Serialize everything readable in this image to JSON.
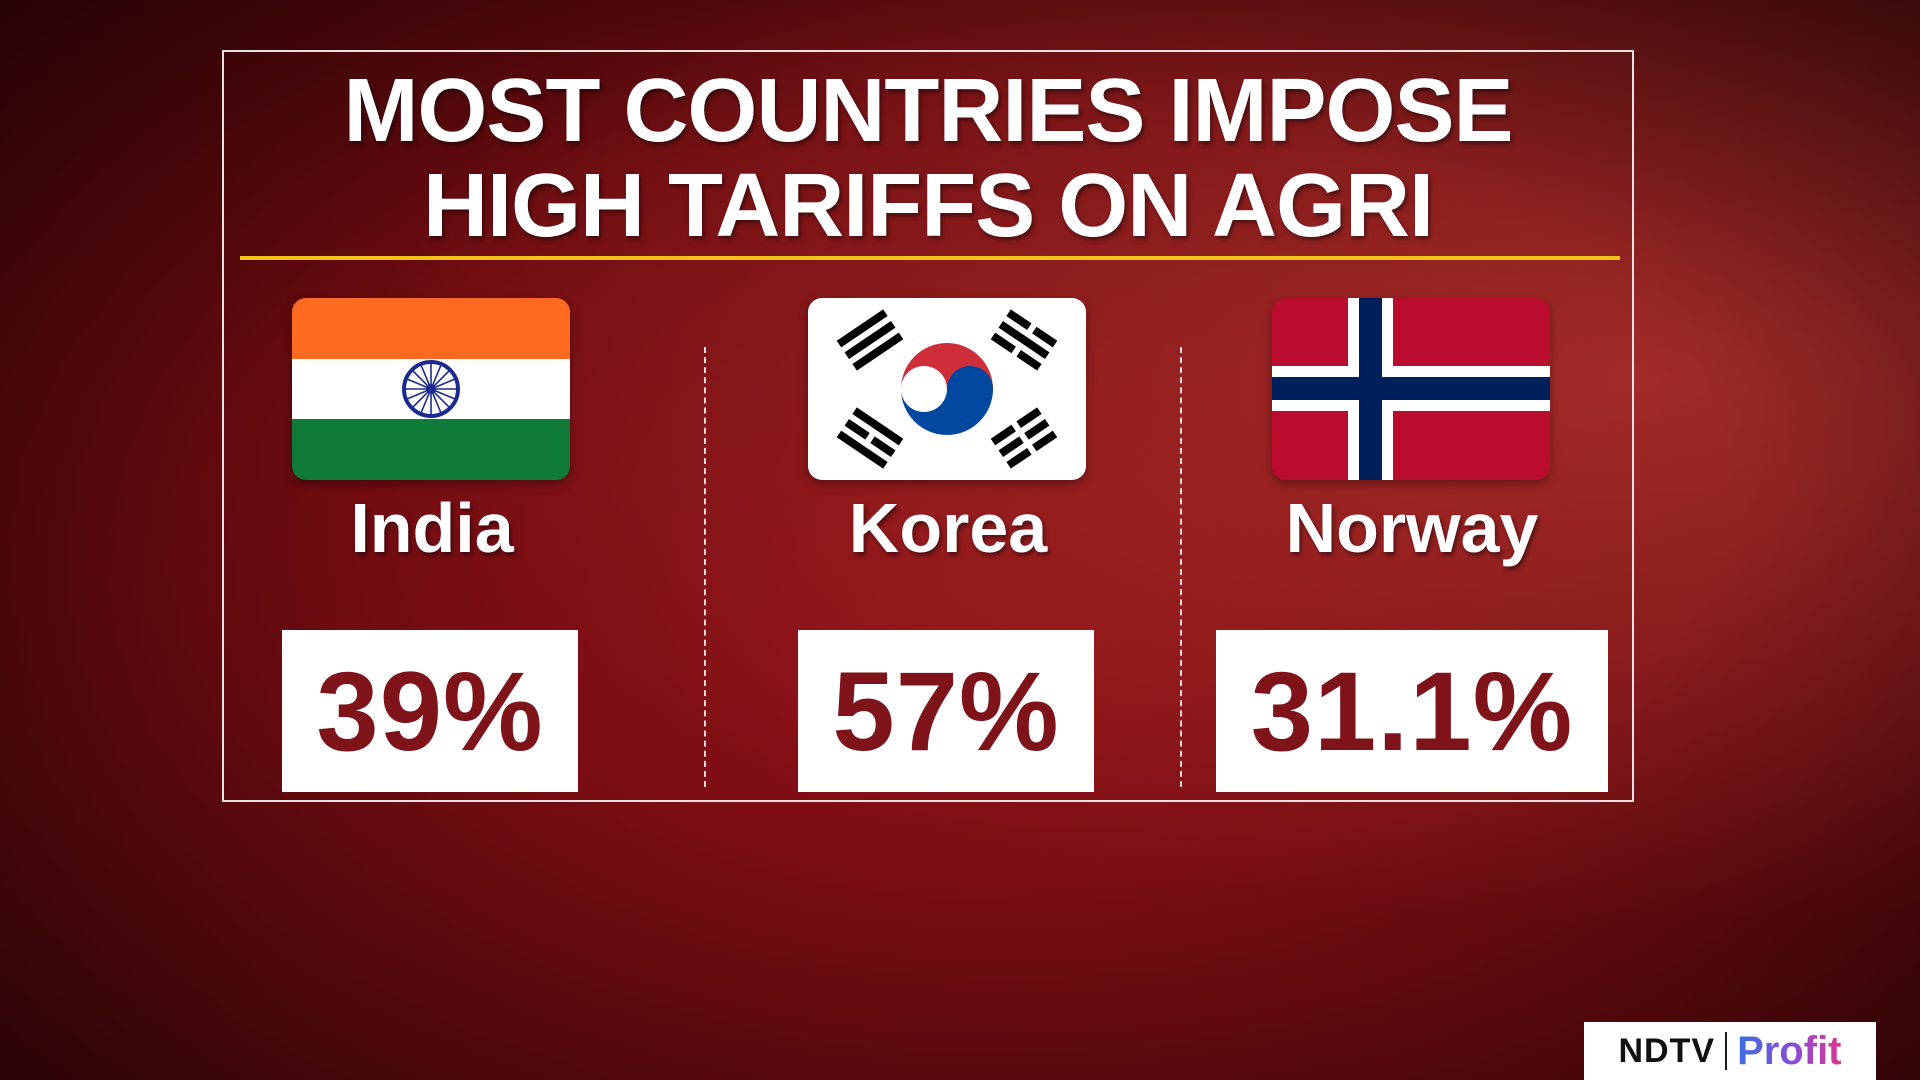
{
  "title": {
    "line1": "MOST COUNTRIES IMPOSE",
    "line2": "HIGH TARIFFS ON AGRI"
  },
  "countries": [
    {
      "name": "India",
      "value": "39%",
      "flag_icon": "india-flag-icon"
    },
    {
      "name": "Korea",
      "value": "57%",
      "flag_icon": "south-korea-flag-icon"
    },
    {
      "name": "Norway",
      "value": "31.1%",
      "flag_icon": "norway-flag-icon"
    }
  ],
  "brand": {
    "ndtv": "NDTV",
    "profit": "Profit"
  },
  "colors": {
    "background": "#7a0d12",
    "accent_rule": "#f2c21b",
    "value_text": "#7e1319",
    "panel_border": "#e9e1e1"
  }
}
